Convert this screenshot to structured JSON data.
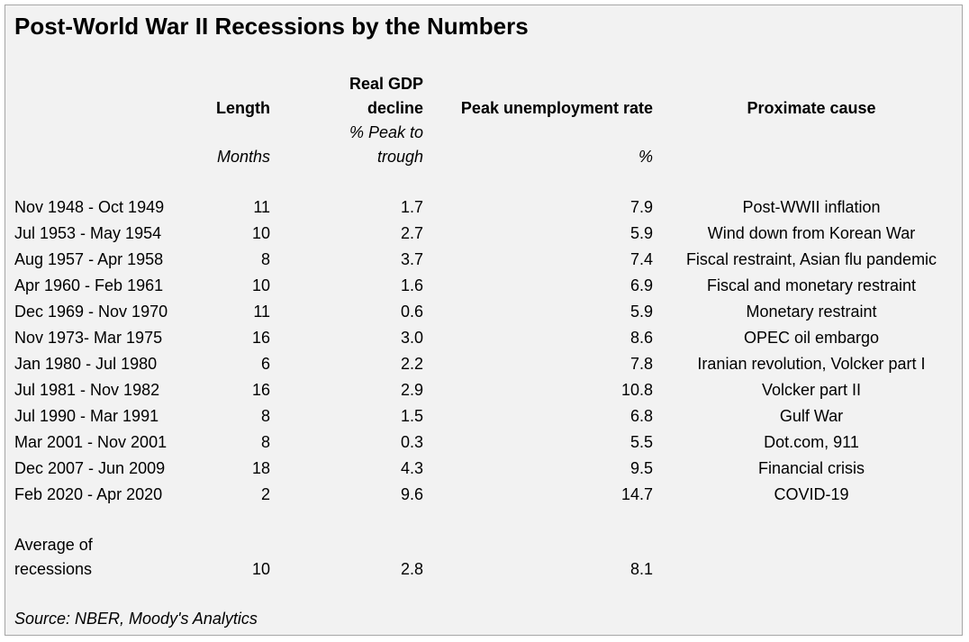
{
  "title": "Post-World War II Recessions by the Numbers",
  "headers": {
    "length": "Length",
    "gdp_line1": "Real GDP",
    "gdp_line2": "decline",
    "unemployment": "Peak unemployment rate",
    "cause": "Proximate cause"
  },
  "units": {
    "length": "Months",
    "gdp_line1": "% Peak to",
    "gdp_line2": "trough",
    "unemployment": "%"
  },
  "rows": [
    {
      "period": "Nov 1948 - Oct 1949",
      "length": "11",
      "gdp": "1.7",
      "unemp": "7.9",
      "cause": "Post-WWII inflation"
    },
    {
      "period": "Jul 1953 - May 1954",
      "length": "10",
      "gdp": "2.7",
      "unemp": "5.9",
      "cause": "Wind down from Korean War"
    },
    {
      "period": "Aug 1957 - Apr 1958",
      "length": "8",
      "gdp": "3.7",
      "unemp": "7.4",
      "cause": "Fiscal restraint, Asian flu pandemic"
    },
    {
      "period": "Apr 1960 - Feb 1961",
      "length": "10",
      "gdp": "1.6",
      "unemp": "6.9",
      "cause": "Fiscal and monetary restraint"
    },
    {
      "period": "Dec 1969 - Nov 1970",
      "length": "11",
      "gdp": "0.6",
      "unemp": "5.9",
      "cause": "Monetary restraint"
    },
    {
      "period": "Nov 1973- Mar 1975",
      "length": "16",
      "gdp": "3.0",
      "unemp": "8.6",
      "cause": "OPEC oil embargo"
    },
    {
      "period": "Jan 1980 - Jul 1980",
      "length": "6",
      "gdp": "2.2",
      "unemp": "7.8",
      "cause": "Iranian revolution, Volcker part I"
    },
    {
      "period": "Jul 1981 - Nov 1982",
      "length": "16",
      "gdp": "2.9",
      "unemp": "10.8",
      "cause": "Volcker part II"
    },
    {
      "period": "Jul 1990 - Mar 1991",
      "length": "8",
      "gdp": "1.5",
      "unemp": "6.8",
      "cause": "Gulf War"
    },
    {
      "period": "Mar 2001 - Nov 2001",
      "length": "8",
      "gdp": "0.3",
      "unemp": "5.5",
      "cause": "Dot.com, 911"
    },
    {
      "period": "Dec 2007 - Jun 2009",
      "length": "18",
      "gdp": "4.3",
      "unemp": "9.5",
      "cause": "Financial crisis"
    },
    {
      "period": "Feb 2020 - Apr 2020",
      "length": "2",
      "gdp": "9.6",
      "unemp": "14.7",
      "cause": "COVID-19"
    }
  ],
  "average": {
    "label_line1": "Average of",
    "label_line2": "recessions",
    "length": "10",
    "gdp": "2.8",
    "unemp": "8.1"
  },
  "source": "Source: NBER, Moody's Analytics",
  "colors": {
    "background": "#f2f2f2",
    "border": "#a6a6a6",
    "text": "#000000"
  }
}
